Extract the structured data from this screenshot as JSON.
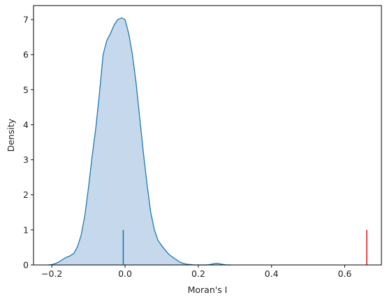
{
  "chart_data": {
    "type": "area",
    "title": "",
    "xlabel": "Moran's I",
    "ylabel": "Density",
    "xlim": [
      -0.25,
      0.7
    ],
    "ylim": [
      0,
      7.4
    ],
    "xticks": [
      -0.2,
      0.0,
      0.2,
      0.4,
      0.6
    ],
    "xtick_labels": [
      "−0.2",
      "0.0",
      "0.2",
      "0.4",
      "0.6"
    ],
    "yticks": [
      0,
      1,
      2,
      3,
      4,
      5,
      6,
      7
    ],
    "ytick_labels": [
      "0",
      "1",
      "2",
      "3",
      "4",
      "5",
      "6",
      "7"
    ],
    "grid": false,
    "legend": "none",
    "series": [
      {
        "kind": "kde",
        "x": [
          -0.21,
          -0.2,
          -0.19,
          -0.18,
          -0.17,
          -0.16,
          -0.15,
          -0.14,
          -0.13,
          -0.12,
          -0.11,
          -0.1,
          -0.09,
          -0.08,
          -0.07,
          -0.06,
          -0.05,
          -0.04,
          -0.03,
          -0.02,
          -0.01,
          0.0,
          0.01,
          0.02,
          0.03,
          0.04,
          0.05,
          0.06,
          0.07,
          0.08,
          0.09,
          0.1,
          0.11,
          0.12,
          0.13,
          0.14,
          0.15,
          0.16,
          0.17,
          0.18,
          0.19,
          0.2,
          0.21,
          0.22,
          0.23,
          0.24,
          0.25,
          0.26,
          0.27,
          0.28,
          0.29
        ],
        "y": [
          0.0,
          0.01,
          0.04,
          0.09,
          0.16,
          0.22,
          0.26,
          0.33,
          0.52,
          0.85,
          1.4,
          2.2,
          3.1,
          3.9,
          4.9,
          6.0,
          6.4,
          6.6,
          6.85,
          7.0,
          7.05,
          7.0,
          6.6,
          6.0,
          5.2,
          4.2,
          3.2,
          2.3,
          1.5,
          1.0,
          0.7,
          0.55,
          0.42,
          0.3,
          0.22,
          0.15,
          0.08,
          0.04,
          0.02,
          0.01,
          0.0,
          0.0,
          0.0,
          0.0,
          0.01,
          0.03,
          0.05,
          0.03,
          0.01,
          0.0,
          0.0
        ],
        "line_color": "#1f77b4",
        "fill_color": "#c6d9ec"
      }
    ],
    "vlines": [
      {
        "x": -0.005,
        "ymin": 0,
        "ymax": 1,
        "color": "#1f77b4"
      },
      {
        "x": 0.66,
        "ymin": 0,
        "ymax": 1,
        "color": "#e41a1c"
      }
    ]
  }
}
